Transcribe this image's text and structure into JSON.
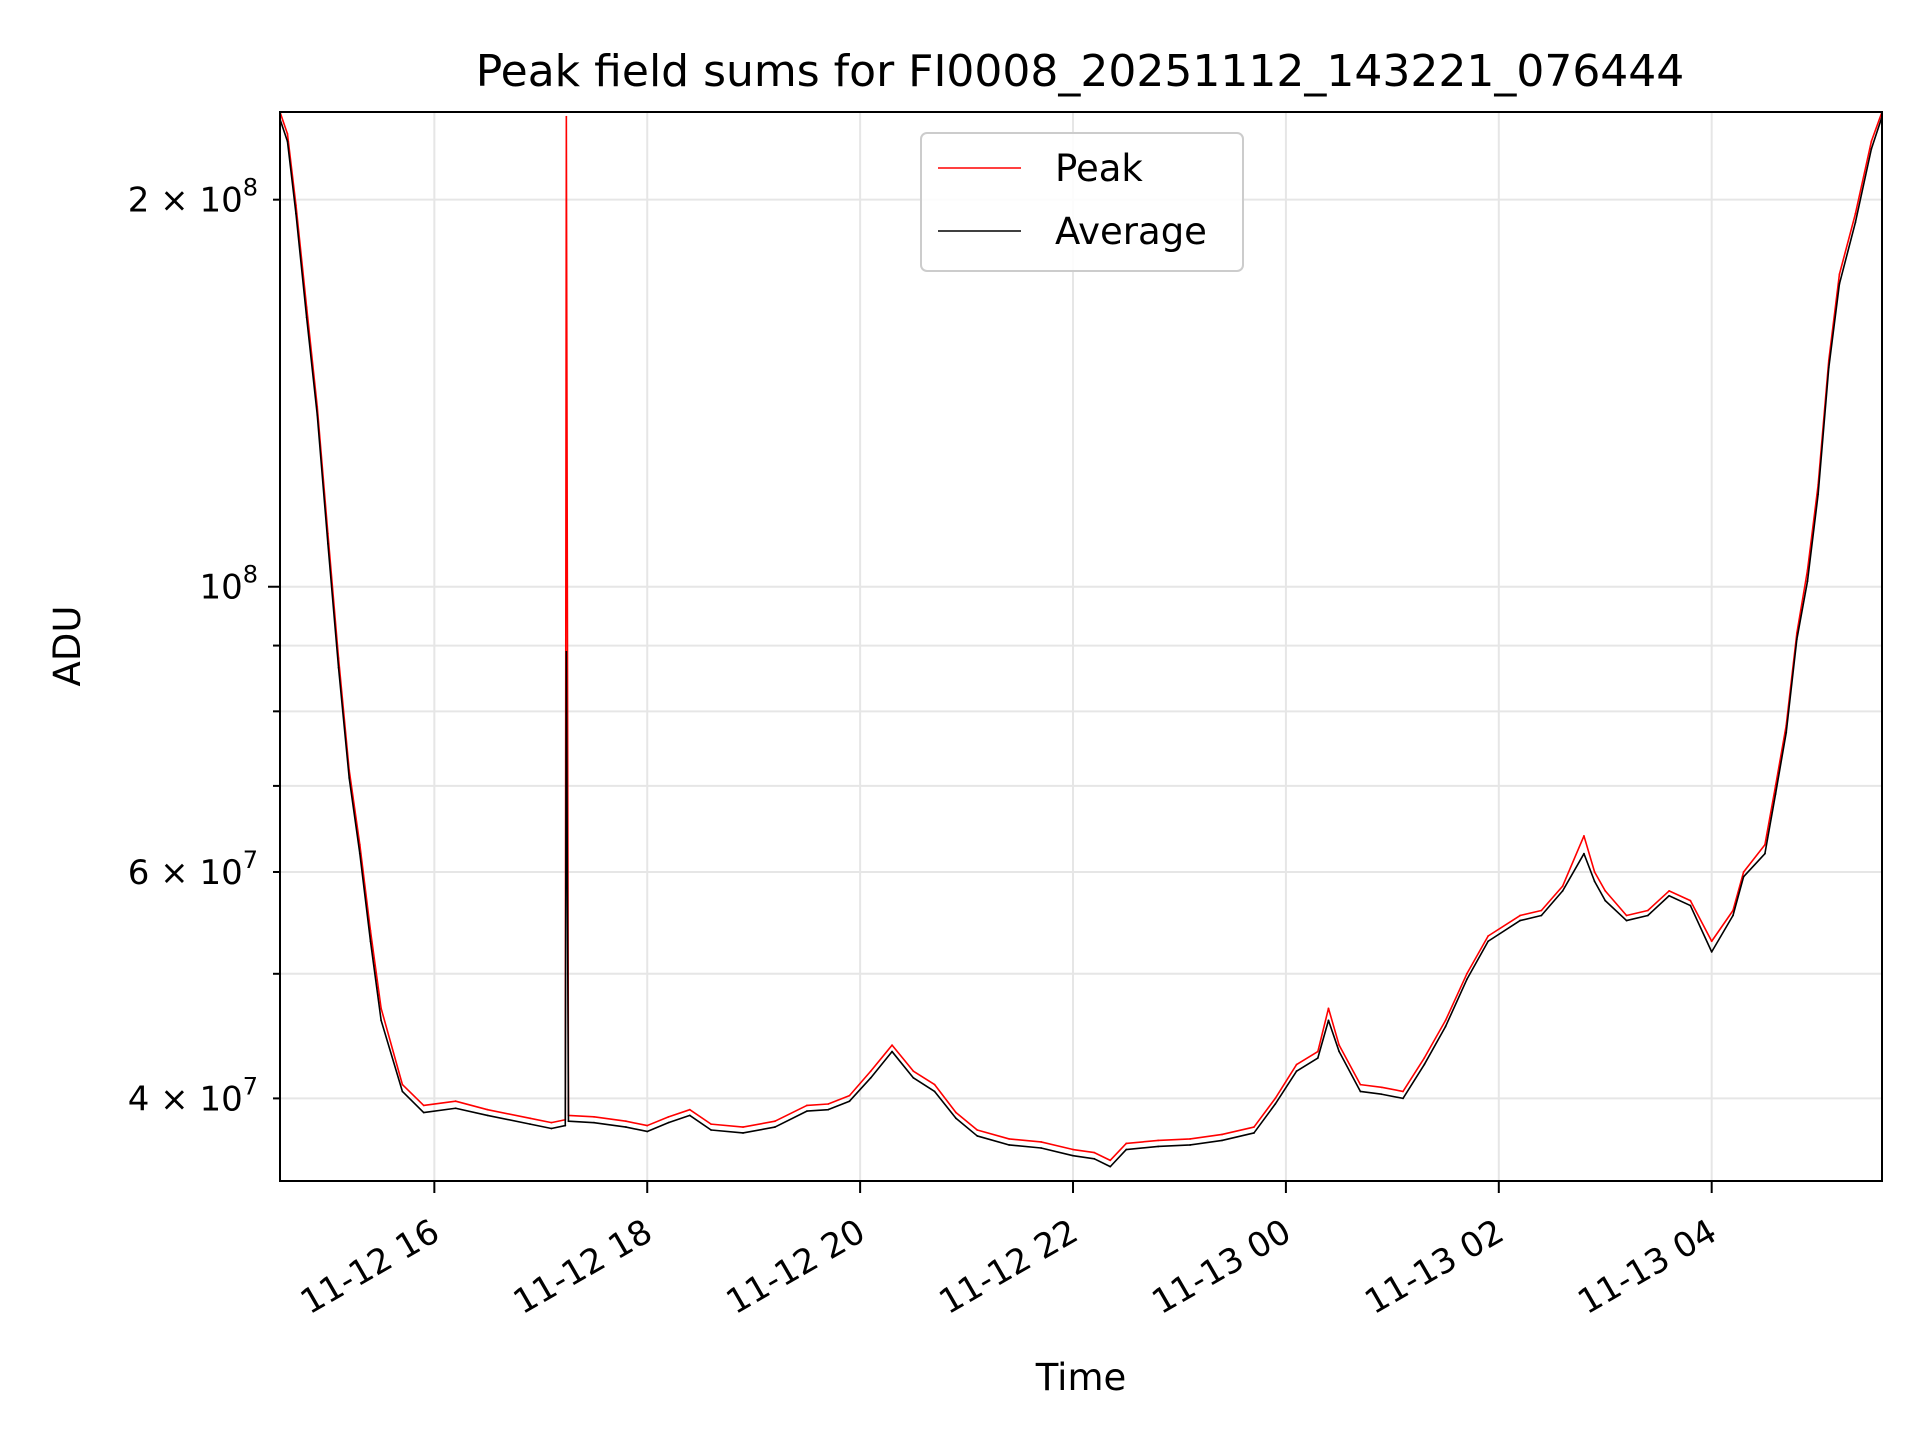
{
  "chart_data": {
    "type": "line",
    "title": "Peak field sums for FI0008_20251112_143221_076444",
    "xlabel": "Time",
    "ylabel": "ADU",
    "yscale": "log",
    "xlim_hours": [
      14.55,
      29.6
    ],
    "ylim": [
      34500000,
      234000000
    ],
    "x_ticks": [
      {
        "label": "11-12 16",
        "hour": 16
      },
      {
        "label": "11-12 18",
        "hour": 18
      },
      {
        "label": "11-12 20",
        "hour": 20
      },
      {
        "label": "11-12 22",
        "hour": 22
      },
      {
        "label": "11-13 00",
        "hour": 24
      },
      {
        "label": "11-13 02",
        "hour": 26
      },
      {
        "label": "11-13 04",
        "hour": 28
      }
    ],
    "y_major_ticks": [
      {
        "value": 100000000,
        "base": "10",
        "exp": "8"
      }
    ],
    "y_minor_ticks": [
      {
        "value": 40000000,
        "mant": "4",
        "exp": "7"
      },
      {
        "value": 60000000,
        "mant": "6",
        "exp": "7"
      },
      {
        "value": 200000000,
        "mant": "2",
        "exp": "8"
      }
    ],
    "y_minor_unlabeled": [
      50000000,
      70000000,
      80000000,
      90000000
    ],
    "grid": true,
    "legend_position": "upper center",
    "series": [
      {
        "name": "Peak",
        "color": "#ff0000",
        "x": [
          14.55,
          14.62,
          14.7,
          14.8,
          14.9,
          15.0,
          15.1,
          15.2,
          15.3,
          15.4,
          15.5,
          15.7,
          15.9,
          16.2,
          16.5,
          16.9,
          17.1,
          17.23,
          17.24,
          17.26,
          17.5,
          17.8,
          18.0,
          18.2,
          18.4,
          18.6,
          18.9,
          19.2,
          19.5,
          19.7,
          19.9,
          20.1,
          20.3,
          20.5,
          20.7,
          20.9,
          21.1,
          21.4,
          21.7,
          22.0,
          22.2,
          22.35,
          22.5,
          22.8,
          23.1,
          23.4,
          23.7,
          23.9,
          24.1,
          24.3,
          24.4,
          24.5,
          24.7,
          24.9,
          25.1,
          25.3,
          25.5,
          25.7,
          25.9,
          26.2,
          26.4,
          26.6,
          26.8,
          26.9,
          27.0,
          27.2,
          27.4,
          27.6,
          27.8,
          28.0,
          28.2,
          28.3,
          28.5,
          28.6,
          28.7,
          28.8,
          28.9,
          29.0,
          29.1,
          29.2,
          29.35,
          29.5,
          29.6
        ],
        "values": [
          234000000,
          225000000,
          198000000,
          165000000,
          138000000,
          110000000,
          88000000,
          72000000,
          63000000,
          54000000,
          47000000,
          41000000,
          39500000,
          39800000,
          39200000,
          38600000,
          38300000,
          38500000,
          232000000,
          38800000,
          38700000,
          38400000,
          38100000,
          38700000,
          39200000,
          38200000,
          38000000,
          38400000,
          39500000,
          39600000,
          40200000,
          42000000,
          44000000,
          42000000,
          41000000,
          39000000,
          37800000,
          37200000,
          37000000,
          36500000,
          36300000,
          35800000,
          36900000,
          37100000,
          37200000,
          37500000,
          38000000,
          40000000,
          42500000,
          43500000,
          47000000,
          44000000,
          41000000,
          40800000,
          40500000,
          43000000,
          46000000,
          50000000,
          53500000,
          55500000,
          56000000,
          58500000,
          64000000,
          60000000,
          58000000,
          55500000,
          56000000,
          58000000,
          57000000,
          53000000,
          56000000,
          60000000,
          63000000,
          70000000,
          78000000,
          92000000,
          103000000,
          120000000,
          150000000,
          175000000,
          195000000,
          222000000,
          234000000
        ]
      },
      {
        "name": "Average",
        "color": "#000000",
        "x": [
          14.55,
          14.62,
          14.7,
          14.8,
          14.9,
          15.0,
          15.1,
          15.2,
          15.3,
          15.4,
          15.5,
          15.7,
          15.9,
          16.2,
          16.5,
          16.9,
          17.1,
          17.23,
          17.24,
          17.26,
          17.5,
          17.8,
          18.0,
          18.2,
          18.4,
          18.6,
          18.9,
          19.2,
          19.5,
          19.7,
          19.9,
          20.1,
          20.3,
          20.5,
          20.7,
          20.9,
          21.1,
          21.4,
          21.7,
          22.0,
          22.2,
          22.35,
          22.5,
          22.8,
          23.1,
          23.4,
          23.7,
          23.9,
          24.1,
          24.3,
          24.4,
          24.5,
          24.7,
          24.9,
          25.1,
          25.3,
          25.5,
          25.7,
          25.9,
          26.2,
          26.4,
          26.6,
          26.8,
          26.9,
          27.0,
          27.2,
          27.4,
          27.6,
          27.8,
          28.0,
          28.2,
          28.3,
          28.5,
          28.6,
          28.7,
          28.8,
          28.9,
          29.0,
          29.1,
          29.2,
          29.35,
          29.5,
          29.6
        ],
        "values": [
          231000000,
          222000000,
          195000000,
          162000000,
          136000000,
          108000000,
          86500000,
          71000000,
          62000000,
          53000000,
          46000000,
          40500000,
          39000000,
          39300000,
          38800000,
          38200000,
          37900000,
          38100000,
          89000000,
          38400000,
          38300000,
          38000000,
          37700000,
          38300000,
          38800000,
          37800000,
          37600000,
          38000000,
          39100000,
          39200000,
          39800000,
          41500000,
          43500000,
          41500000,
          40500000,
          38600000,
          37400000,
          36800000,
          36600000,
          36100000,
          35900000,
          35400000,
          36500000,
          36700000,
          36800000,
          37100000,
          37600000,
          39600000,
          42000000,
          43000000,
          46000000,
          43500000,
          40500000,
          40300000,
          40000000,
          42500000,
          45500000,
          49500000,
          53000000,
          55000000,
          55500000,
          58000000,
          62000000,
          59000000,
          57000000,
          55000000,
          55500000,
          57500000,
          56500000,
          52000000,
          55500000,
          59500000,
          62000000,
          69000000,
          77000000,
          91000000,
          101000000,
          118000000,
          148000000,
          172000000,
          192000000,
          219000000,
          232000000
        ]
      }
    ]
  }
}
